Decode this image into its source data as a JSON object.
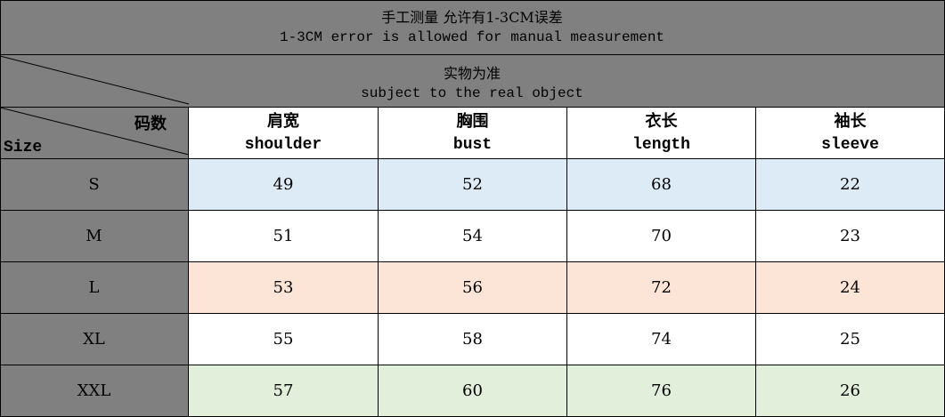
{
  "title": {
    "zh": "手工测量   允许有1-3CM误差",
    "en": "1-3CM error is allowed for manual measurement"
  },
  "subtitle": {
    "zh": "实物为准",
    "en": "subject to the real object"
  },
  "corner": {
    "top": "码数",
    "bottom": "Size"
  },
  "columns": [
    {
      "zh": "肩宽",
      "en": "shoulder"
    },
    {
      "zh": "胸围",
      "en": "bust"
    },
    {
      "zh": "衣长",
      "en": "length"
    },
    {
      "zh": "袖长",
      "en": "sleeve"
    }
  ],
  "rows": [
    {
      "size": "S",
      "values": [
        "49",
        "52",
        "68",
        "22"
      ],
      "color": "#ddebf7"
    },
    {
      "size": "M",
      "values": [
        "51",
        "54",
        "70",
        "23"
      ],
      "color": "#ffffff"
    },
    {
      "size": "L",
      "values": [
        "53",
        "56",
        "72",
        "24"
      ],
      "color": "#fce4d6"
    },
    {
      "size": "XL",
      "values": [
        "55",
        "58",
        "74",
        "25"
      ],
      "color": "#ffffff"
    },
    {
      "size": "XXL",
      "values": [
        "57",
        "60",
        "76",
        "26"
      ],
      "color": "#e2efda"
    }
  ],
  "colors": {
    "header_bg": "#808080"
  }
}
